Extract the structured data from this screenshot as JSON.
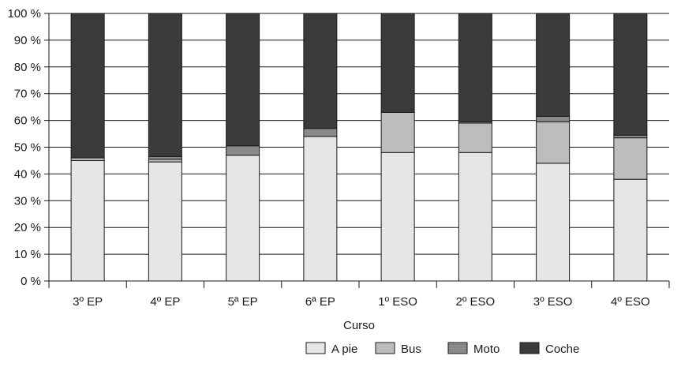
{
  "chart_data": {
    "type": "bar",
    "stacked": true,
    "title": "",
    "xlabel": "Curso",
    "ylabel": "",
    "ylim": [
      0,
      100
    ],
    "yticks": [
      0,
      10,
      20,
      30,
      40,
      50,
      60,
      70,
      80,
      90,
      100
    ],
    "ytick_labels": [
      "0 %",
      "10 %",
      "20 %",
      "30 %",
      "40 %",
      "50 %",
      "60 %",
      "70 %",
      "80 %",
      "90 %",
      "100 %"
    ],
    "grid": true,
    "legend_position": "bottom",
    "categories": [
      "3º EP",
      "4º EP",
      "5ª EP",
      "6ª EP",
      "1º ESO",
      "2º ESO",
      "3º ESO",
      "4º ESO"
    ],
    "series": [
      {
        "name": "A pie",
        "color": "#e6e6e6",
        "values": [
          45,
          44.5,
          47,
          54,
          48,
          48,
          44,
          38
        ]
      },
      {
        "name": "Bus",
        "color": "#bdbdbd",
        "values": [
          1,
          1,
          0,
          0,
          15,
          11,
          15.5,
          15.5
        ]
      },
      {
        "name": "Moto",
        "color": "#8a8a8a",
        "values": [
          0,
          1,
          3.5,
          3,
          0,
          0.5,
          2,
          1
        ]
      },
      {
        "name": "Coche",
        "color": "#3b3b3b",
        "values": [
          54,
          53.5,
          49.5,
          43,
          37,
          40.5,
          38.5,
          45.5
        ]
      }
    ]
  }
}
